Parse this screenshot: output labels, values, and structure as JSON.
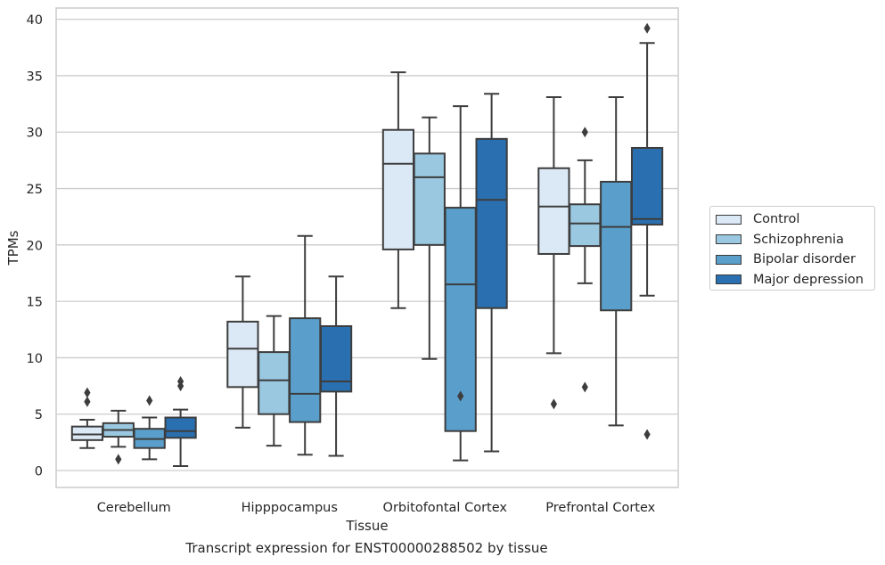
{
  "figure": {
    "caption": "Transcript expression for ENST00000288502 by tissue"
  },
  "chart_data": {
    "type": "box",
    "xlabel": "Tissue",
    "ylabel": "TPMs",
    "ylim": [
      -1.5,
      41
    ],
    "yticks": [
      0,
      5,
      10,
      15,
      20,
      25,
      30,
      35,
      40
    ],
    "grid": true,
    "legend_placement": "right",
    "categories": [
      "Cerebellum",
      "Hipppocampus",
      "Orbitofontal Cortex",
      "Prefrontal Cortex"
    ],
    "series": [
      {
        "name": "Control",
        "color": "#dbe9f6",
        "boxes": [
          {
            "whisker_low": 2.0,
            "q1": 2.7,
            "median": 3.2,
            "q3": 3.9,
            "whisker_high": 4.5,
            "outliers": [
              6.1,
              6.9
            ]
          },
          {
            "whisker_low": 3.8,
            "q1": 7.4,
            "median": 10.8,
            "q3": 13.2,
            "whisker_high": 17.2,
            "outliers": []
          },
          {
            "whisker_low": 14.4,
            "q1": 19.6,
            "median": 27.2,
            "q3": 30.2,
            "whisker_high": 35.3,
            "outliers": []
          },
          {
            "whisker_low": 10.4,
            "q1": 19.2,
            "median": 23.4,
            "q3": 26.8,
            "whisker_high": 33.1,
            "outliers": [
              5.9
            ]
          }
        ]
      },
      {
        "name": "Schizophrenia",
        "color": "#9ac8e0",
        "boxes": [
          {
            "whisker_low": 2.1,
            "q1": 3.0,
            "median": 3.6,
            "q3": 4.2,
            "whisker_high": 5.3,
            "outliers": [
              1.0
            ]
          },
          {
            "whisker_low": 2.2,
            "q1": 5.0,
            "median": 8.0,
            "q3": 10.5,
            "whisker_high": 13.7,
            "outliers": []
          },
          {
            "whisker_low": 9.9,
            "q1": 20.0,
            "median": 26.0,
            "q3": 28.1,
            "whisker_high": 31.3,
            "outliers": []
          },
          {
            "whisker_low": 16.6,
            "q1": 19.9,
            "median": 21.9,
            "q3": 23.6,
            "whisker_high": 27.5,
            "outliers": [
              7.4,
              30.0
            ]
          }
        ]
      },
      {
        "name": "Bipolar disorder",
        "color": "#5a9fcc",
        "boxes": [
          {
            "whisker_low": 1.0,
            "q1": 2.0,
            "median": 2.8,
            "q3": 3.7,
            "whisker_high": 4.7,
            "outliers": [
              6.2
            ]
          },
          {
            "whisker_low": 1.4,
            "q1": 4.3,
            "median": 6.8,
            "q3": 13.5,
            "whisker_high": 20.8,
            "outliers": []
          },
          {
            "whisker_low": 0.9,
            "q1": 3.5,
            "median": 16.5,
            "q3": 23.3,
            "whisker_high": 32.3,
            "outliers": [
              6.6
            ]
          },
          {
            "whisker_low": 4.0,
            "q1": 14.2,
            "median": 21.6,
            "q3": 25.6,
            "whisker_high": 33.1,
            "outliers": []
          }
        ]
      },
      {
        "name": "Major depression",
        "color": "#2a70b0",
        "boxes": [
          {
            "whisker_low": 0.4,
            "q1": 2.9,
            "median": 3.5,
            "q3": 4.7,
            "whisker_high": 5.4,
            "outliers": [
              7.5,
              7.9
            ]
          },
          {
            "whisker_low": 1.3,
            "q1": 7.0,
            "median": 7.9,
            "q3": 12.8,
            "whisker_high": 17.2,
            "outliers": []
          },
          {
            "whisker_low": 1.7,
            "q1": 14.4,
            "median": 24.0,
            "q3": 29.4,
            "whisker_high": 33.4,
            "outliers": []
          },
          {
            "whisker_low": 15.5,
            "q1": 21.8,
            "median": 22.3,
            "q3": 28.6,
            "whisker_high": 37.9,
            "outliers": [
              3.2,
              39.2
            ]
          }
        ]
      }
    ]
  }
}
